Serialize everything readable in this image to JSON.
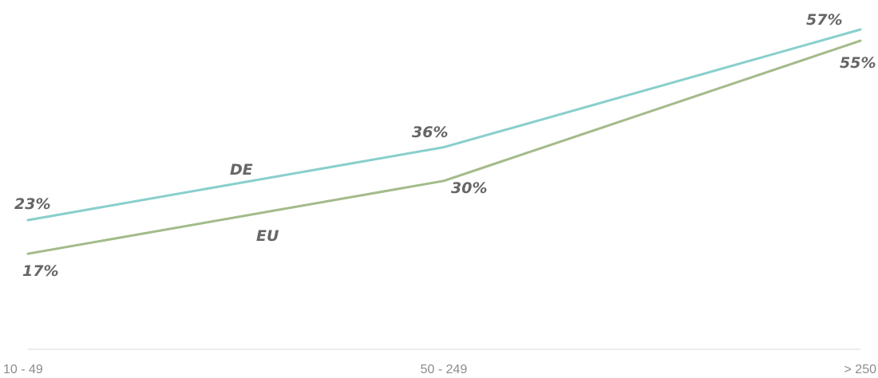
{
  "chart_data": {
    "type": "line",
    "categories": [
      "10 - 49",
      "50 - 249",
      "> 250"
    ],
    "series": [
      {
        "name": "DE",
        "values": [
          23,
          36,
          57
        ],
        "labels": [
          "23%",
          "36%",
          "57%"
        ],
        "color": "#88cfcc"
      },
      {
        "name": "EU",
        "values": [
          17,
          30,
          55
        ],
        "labels": [
          "17%",
          "30%",
          "55%"
        ],
        "color": "#a3bb8a"
      }
    ],
    "title": "",
    "xlabel": "",
    "ylabel": "",
    "ylim": [
      0,
      60
    ],
    "grid": false,
    "legend": "inline",
    "colors": {
      "axis": "#e6e6e6",
      "label": "#666666",
      "tick": "#8c8c8c"
    }
  }
}
